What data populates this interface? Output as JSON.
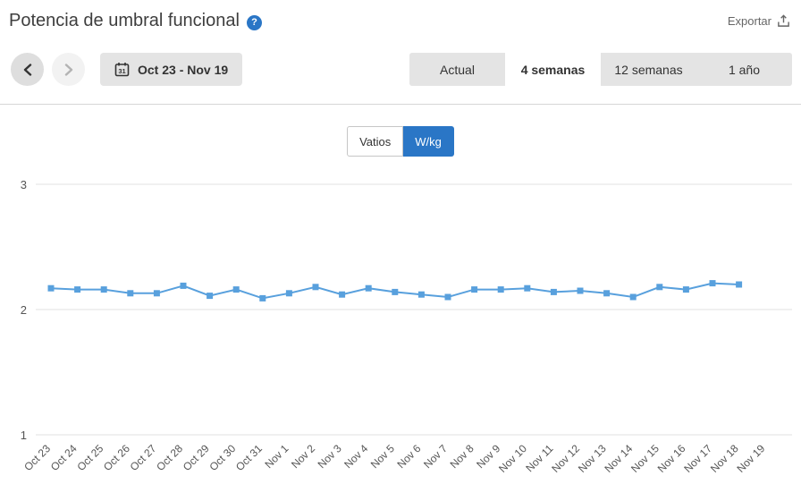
{
  "header": {
    "title": "Potencia de umbral funcional",
    "help_icon": "?",
    "export_label": "Exportar"
  },
  "toolbar": {
    "calendar_day": "31",
    "date_range": "Oct 23 - Nov 19",
    "tabs": [
      {
        "label": "Actual",
        "active": false
      },
      {
        "label": "4 semanas",
        "active": true
      },
      {
        "label": "12 semanas",
        "active": false
      },
      {
        "label": "1 año",
        "active": false
      }
    ]
  },
  "unit_toggle": [
    {
      "label": "Vatios",
      "active": false
    },
    {
      "label": "W/kg",
      "active": true
    }
  ],
  "colors": {
    "accent_blue": "#2a76c6",
    "line_blue": "#58a0dd",
    "grid": "#e2e2e2",
    "axis_text": "#555555"
  },
  "chart_data": {
    "type": "line",
    "title": "Potencia de umbral funcional",
    "ylabel": "W/kg",
    "x": [
      "Oct 23",
      "Oct 24",
      "Oct 25",
      "Oct 26",
      "Oct 27",
      "Oct 28",
      "Oct 29",
      "Oct 30",
      "Oct 31",
      "Nov 1",
      "Nov 2",
      "Nov 3",
      "Nov 4",
      "Nov 5",
      "Nov 6",
      "Nov 7",
      "Nov 8",
      "Nov 9",
      "Nov 10",
      "Nov 11",
      "Nov 12",
      "Nov 13",
      "Nov 14",
      "Nov 15",
      "Nov 16",
      "Nov 17",
      "Nov 18",
      "Nov 19"
    ],
    "values": [
      2.17,
      2.16,
      2.16,
      2.13,
      2.13,
      2.19,
      2.11,
      2.16,
      2.09,
      2.13,
      2.18,
      2.12,
      2.17,
      2.14,
      2.12,
      2.1,
      2.16,
      2.16,
      2.17,
      2.14,
      2.15,
      2.13,
      2.1,
      2.18,
      2.16,
      2.21,
      2.2,
      null
    ],
    "ylim": [
      1,
      3.2
    ],
    "yticks": [
      1,
      2,
      3
    ],
    "grid": true,
    "legend": "none",
    "marker": "square"
  }
}
